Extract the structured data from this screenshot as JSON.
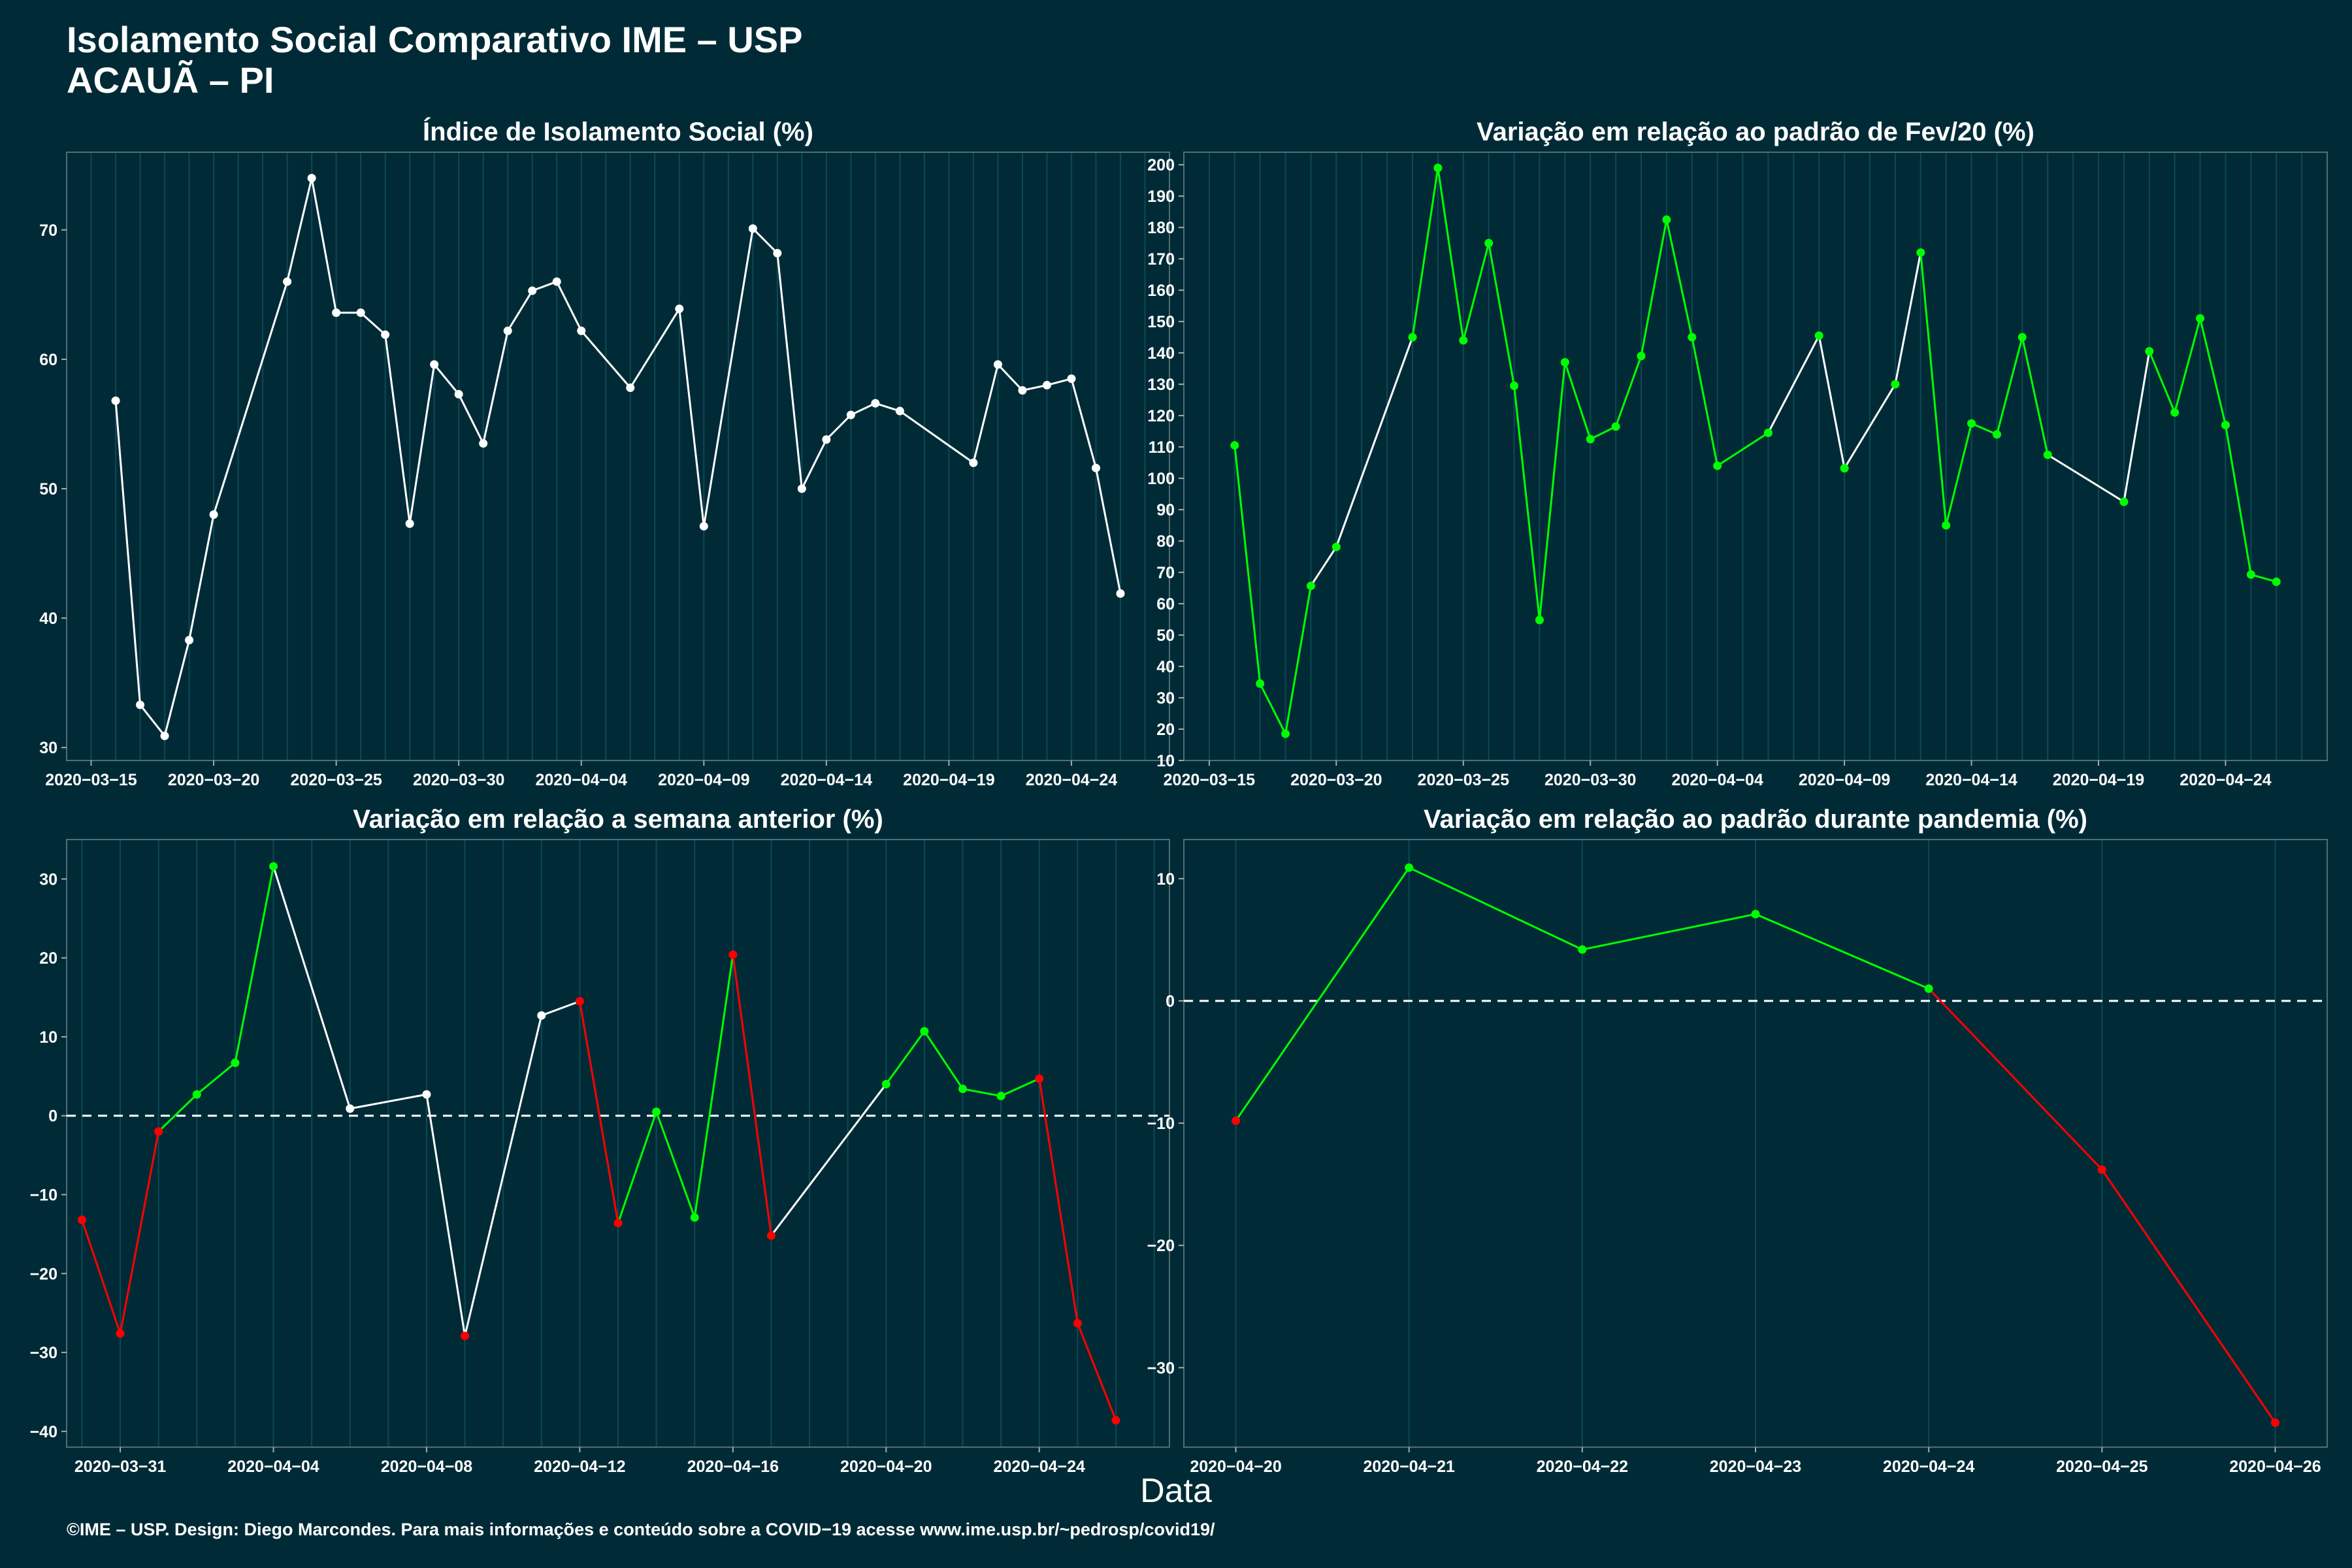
{
  "header": {
    "title_line1": "Isolamento Social Comparativo IME – USP",
    "title_line2": "ACAUÃ – PI"
  },
  "x_axis_label": "Data",
  "footer": "©IME – USP. Design: Diego Marcondes. Para mais informações e conteúdo sobre a COVID−19 acesse www.ime.usp.br/~pedrosp/covid19/",
  "colors": {
    "background": "#002b36",
    "grid": "#0f4855",
    "white": "#ffffff",
    "green": "#00ff00",
    "red": "#ff0000"
  },
  "chart_data": [
    {
      "type": "line",
      "title": "Índice de Isolamento Social (%)",
      "x_ticks": [
        "2020-03-15",
        "2020-03-20",
        "2020-03-25",
        "2020-03-30",
        "2020-04-04",
        "2020-04-09",
        "2020-04-14",
        "2020-04-19",
        "2020-04-24"
      ],
      "xlim": [
        "2020-03-14",
        "2020-04-28"
      ],
      "ylim": [
        29,
        76
      ],
      "y_ticks": [
        30,
        40,
        50,
        60,
        70
      ],
      "points": [
        [
          "2020-03-16",
          56.8
        ],
        [
          "2020-03-17",
          33.3
        ],
        [
          "2020-03-18",
          30.9
        ],
        [
          "2020-03-19",
          38.3
        ],
        [
          "2020-03-20",
          48.0
        ],
        [
          "2020-03-23",
          66.0
        ],
        [
          "2020-03-24",
          74.0
        ],
        [
          "2020-03-25",
          63.6
        ],
        [
          "2020-03-26",
          63.6
        ],
        [
          "2020-03-27",
          61.9
        ],
        [
          "2020-03-28",
          47.3
        ],
        [
          "2020-03-29",
          59.6
        ],
        [
          "2020-03-30",
          57.3
        ],
        [
          "2020-03-31",
          53.5
        ],
        [
          "2020-04-01",
          62.2
        ],
        [
          "2020-04-02",
          65.3
        ],
        [
          "2020-04-03",
          66.0
        ],
        [
          "2020-04-04",
          62.2
        ],
        [
          "2020-04-06",
          57.8
        ],
        [
          "2020-04-08",
          63.9
        ],
        [
          "2020-04-09",
          47.1
        ],
        [
          "2020-04-11",
          70.1
        ],
        [
          "2020-04-12",
          68.2
        ],
        [
          "2020-04-13",
          50.0
        ],
        [
          "2020-04-14",
          53.8
        ],
        [
          "2020-04-15",
          55.7
        ],
        [
          "2020-04-16",
          56.6
        ],
        [
          "2020-04-17",
          56.0
        ],
        [
          "2020-04-20",
          52.0
        ],
        [
          "2020-04-21",
          59.6
        ],
        [
          "2020-04-22",
          57.6
        ],
        [
          "2020-04-23",
          58.0
        ],
        [
          "2020-04-24",
          58.5
        ],
        [
          "2020-04-25",
          51.6
        ],
        [
          "2020-04-26",
          41.9
        ]
      ]
    },
    {
      "type": "line",
      "title": "Variação em relação ao padrão de Fev/20 (%)",
      "x_ticks": [
        "2020-03-15",
        "2020-03-20",
        "2020-03-25",
        "2020-03-30",
        "2020-04-04",
        "2020-04-09",
        "2020-04-14",
        "2020-04-19",
        "2020-04-24"
      ],
      "xlim": [
        "2020-03-14",
        "2020-04-28"
      ],
      "ylim": [
        10,
        204
      ],
      "y_ticks": [
        10,
        20,
        30,
        40,
        50,
        60,
        70,
        80,
        90,
        100,
        110,
        120,
        130,
        140,
        150,
        160,
        170,
        180,
        190,
        200
      ],
      "points": [
        [
          "2020-03-16",
          110.5
        ],
        [
          "2020-03-17",
          34.5
        ],
        [
          "2020-03-18",
          18.5
        ],
        [
          "2020-03-19",
          65.7
        ],
        [
          "2020-03-20",
          78.1
        ],
        [
          "2020-03-23",
          145.0
        ],
        [
          "2020-03-24",
          199.0
        ],
        [
          "2020-03-25",
          144.0
        ],
        [
          "2020-03-26",
          175.0
        ],
        [
          "2020-03-27",
          129.5
        ],
        [
          "2020-03-28",
          54.8
        ],
        [
          "2020-03-29",
          137.0
        ],
        [
          "2020-03-30",
          112.5
        ],
        [
          "2020-03-31",
          116.5
        ],
        [
          "2020-04-01",
          139.0
        ],
        [
          "2020-04-02",
          182.5
        ],
        [
          "2020-04-03",
          145.0
        ],
        [
          "2020-04-04",
          104.0
        ],
        [
          "2020-04-06",
          114.5
        ],
        [
          "2020-04-08",
          145.5
        ],
        [
          "2020-04-09",
          103.2
        ],
        [
          "2020-04-11",
          130.0
        ],
        [
          "2020-04-12",
          172.0
        ],
        [
          "2020-04-13",
          85.0
        ],
        [
          "2020-04-14",
          117.5
        ],
        [
          "2020-04-15",
          114.0
        ],
        [
          "2020-04-16",
          145.0
        ],
        [
          "2020-04-17",
          107.5
        ],
        [
          "2020-04-20",
          92.5
        ],
        [
          "2020-04-21",
          140.5
        ],
        [
          "2020-04-22",
          121.0
        ],
        [
          "2020-04-23",
          151.0
        ],
        [
          "2020-04-24",
          117.0
        ],
        [
          "2020-04-25",
          69.3
        ],
        [
          "2020-04-26",
          67.0
        ]
      ],
      "segment_colors": [
        "green",
        "green",
        "green",
        "white",
        "white",
        "green",
        "green",
        "green",
        "green",
        "green",
        "green",
        "green",
        "green",
        "green",
        "green",
        "green",
        "green",
        "green",
        "white",
        "white",
        "white",
        "white",
        "green",
        "green",
        "green",
        "green",
        "green",
        "white",
        "white",
        "green",
        "green",
        "green",
        "green",
        "green"
      ]
    },
    {
      "type": "line",
      "title": "Variação em relação a semana anterior (%)",
      "x_ticks": [
        "2020-03-31",
        "2020-04-04",
        "2020-04-08",
        "2020-04-12",
        "2020-04-16",
        "2020-04-20",
        "2020-04-24"
      ],
      "xlim": [
        "2020-03-29.6",
        "2020-04-27.4"
      ],
      "ylim": [
        -42,
        35
      ],
      "y_ticks": [
        -40,
        -30,
        -20,
        -10,
        0,
        10,
        20,
        30
      ],
      "zero_line": 0,
      "points": [
        [
          "2020-03-30",
          -13.2
        ],
        [
          "2020-03-31",
          -27.6
        ],
        [
          "2020-04-01",
          -2.0
        ],
        [
          "2020-04-02",
          2.7
        ],
        [
          "2020-04-03",
          6.7
        ],
        [
          "2020-04-04",
          31.6
        ],
        [
          "2020-04-06",
          0.9
        ],
        [
          "2020-04-08",
          2.7
        ],
        [
          "2020-04-09",
          -27.9
        ],
        [
          "2020-04-11",
          12.7
        ],
        [
          "2020-04-12",
          14.5
        ],
        [
          "2020-04-13",
          -13.6
        ],
        [
          "2020-04-14",
          0.5
        ],
        [
          "2020-04-15",
          -12.9
        ],
        [
          "2020-04-16",
          20.4
        ],
        [
          "2020-04-17",
          -15.2
        ],
        [
          "2020-04-20",
          4.0
        ],
        [
          "2020-04-21",
          10.7
        ],
        [
          "2020-04-22",
          3.4
        ],
        [
          "2020-04-23",
          2.5
        ],
        [
          "2020-04-24",
          4.7
        ],
        [
          "2020-04-25",
          -26.3
        ],
        [
          "2020-04-26",
          -38.6
        ]
      ],
      "point_colors": [
        "red",
        "red",
        "red",
        "green",
        "green",
        "green",
        "white",
        "white",
        "red",
        "white",
        "red",
        "red",
        "green",
        "green",
        "red",
        "red",
        "green",
        "green",
        "green",
        "green",
        "red",
        "red",
        "red"
      ],
      "segment_colors": [
        "red",
        "red",
        "green",
        "green",
        "green",
        "white",
        "white",
        "white",
        "white",
        "white",
        "red",
        "green",
        "green",
        "green",
        "red",
        "white",
        "green",
        "green",
        "green",
        "green",
        "red",
        "red"
      ]
    },
    {
      "type": "line",
      "title": "Variação em relação ao padrão durante pandemia (%)",
      "x_ticks": [
        "2020-04-20",
        "2020-04-21",
        "2020-04-22",
        "2020-04-23",
        "2020-04-24",
        "2020-04-25",
        "2020-04-26"
      ],
      "xlim": [
        "2020-04-19.7",
        "2020-04-26.3"
      ],
      "ylim": [
        -36.5,
        13.2
      ],
      "y_ticks": [
        -30,
        -20,
        -10,
        0,
        10
      ],
      "zero_line": 0,
      "points": [
        [
          "2020-04-20",
          -9.8
        ],
        [
          "2020-04-21",
          10.9
        ],
        [
          "2020-04-22",
          4.2
        ],
        [
          "2020-04-23",
          7.1
        ],
        [
          "2020-04-24",
          1.0
        ],
        [
          "2020-04-25",
          -13.8
        ],
        [
          "2020-04-26",
          -34.5
        ]
      ],
      "point_colors": [
        "red",
        "green",
        "green",
        "green",
        "green",
        "red",
        "red"
      ],
      "segment_colors": [
        "green",
        "green",
        "green",
        "green",
        "red",
        "red"
      ]
    }
  ]
}
